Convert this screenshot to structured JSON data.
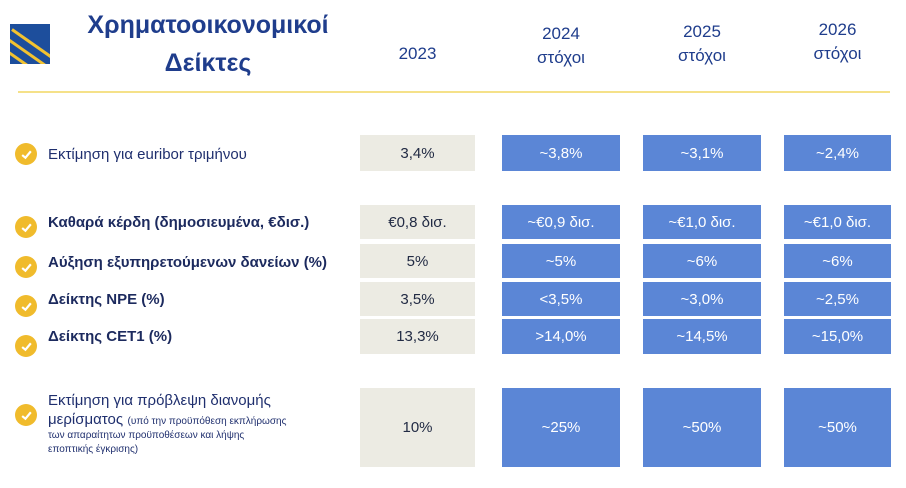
{
  "header": {
    "title_line1": "Χρηματοοικονομικοί",
    "title_line2": "Δείκτες",
    "columns": [
      {
        "year": "2023",
        "sub": ""
      },
      {
        "year": "2024",
        "sub": "στόχοι"
      },
      {
        "year": "2025",
        "sub": "στόχοι"
      },
      {
        "year": "2026",
        "sub": "στόχοι"
      }
    ]
  },
  "icons": {
    "logo": "bank-logo",
    "bullet": "check-circle-icon"
  },
  "colors": {
    "accent": "#f0bb2c",
    "target_cell": "#5b86d6",
    "base_cell": "#ecebe3",
    "title": "#1f3d8c"
  },
  "rows": [
    {
      "label": "Εκτίμηση για euribor τριμήνου",
      "bold": false,
      "values": [
        "3,4%",
        "~3,8%",
        "~3,1%",
        "~2,4%"
      ]
    },
    {
      "label": "Καθαρά κέρδη (δημοσιευμένα, €δισ.)",
      "bold": true,
      "values": [
        "€0,8 δισ.",
        "~€0,9 δισ.",
        "~€1,0 δισ.",
        "~€1,0 δισ."
      ]
    },
    {
      "label": "Αύξηση εξυπηρετούμενων δανείων (%)",
      "bold": true,
      "values": [
        "5%",
        "~5%",
        "~6%",
        "~6%"
      ]
    },
    {
      "label": "Δείκτης NPE (%)",
      "bold": true,
      "values": [
        "3,5%",
        "<3,5%",
        "~3,0%",
        "~2,5%"
      ]
    },
    {
      "label": "Δείκτης CET1 (%)",
      "bold": true,
      "values": [
        "13,3%",
        ">14,0%",
        "~14,5%",
        "~15,0%"
      ]
    },
    {
      "label_line1": "Εκτίμηση για πρόβλεψη διανομής",
      "label_line2": "μερίσματος",
      "note_inline": "(υπό την προϋπόθεση εκπλήρωσης",
      "note_line2": "των απαραίτητων προϋποθέσεων και λήψης",
      "note_line3": "εποπτικής έγκρισης)",
      "bold": false,
      "values": [
        "10%",
        "~25%",
        "~50%",
        "~50%"
      ]
    }
  ]
}
